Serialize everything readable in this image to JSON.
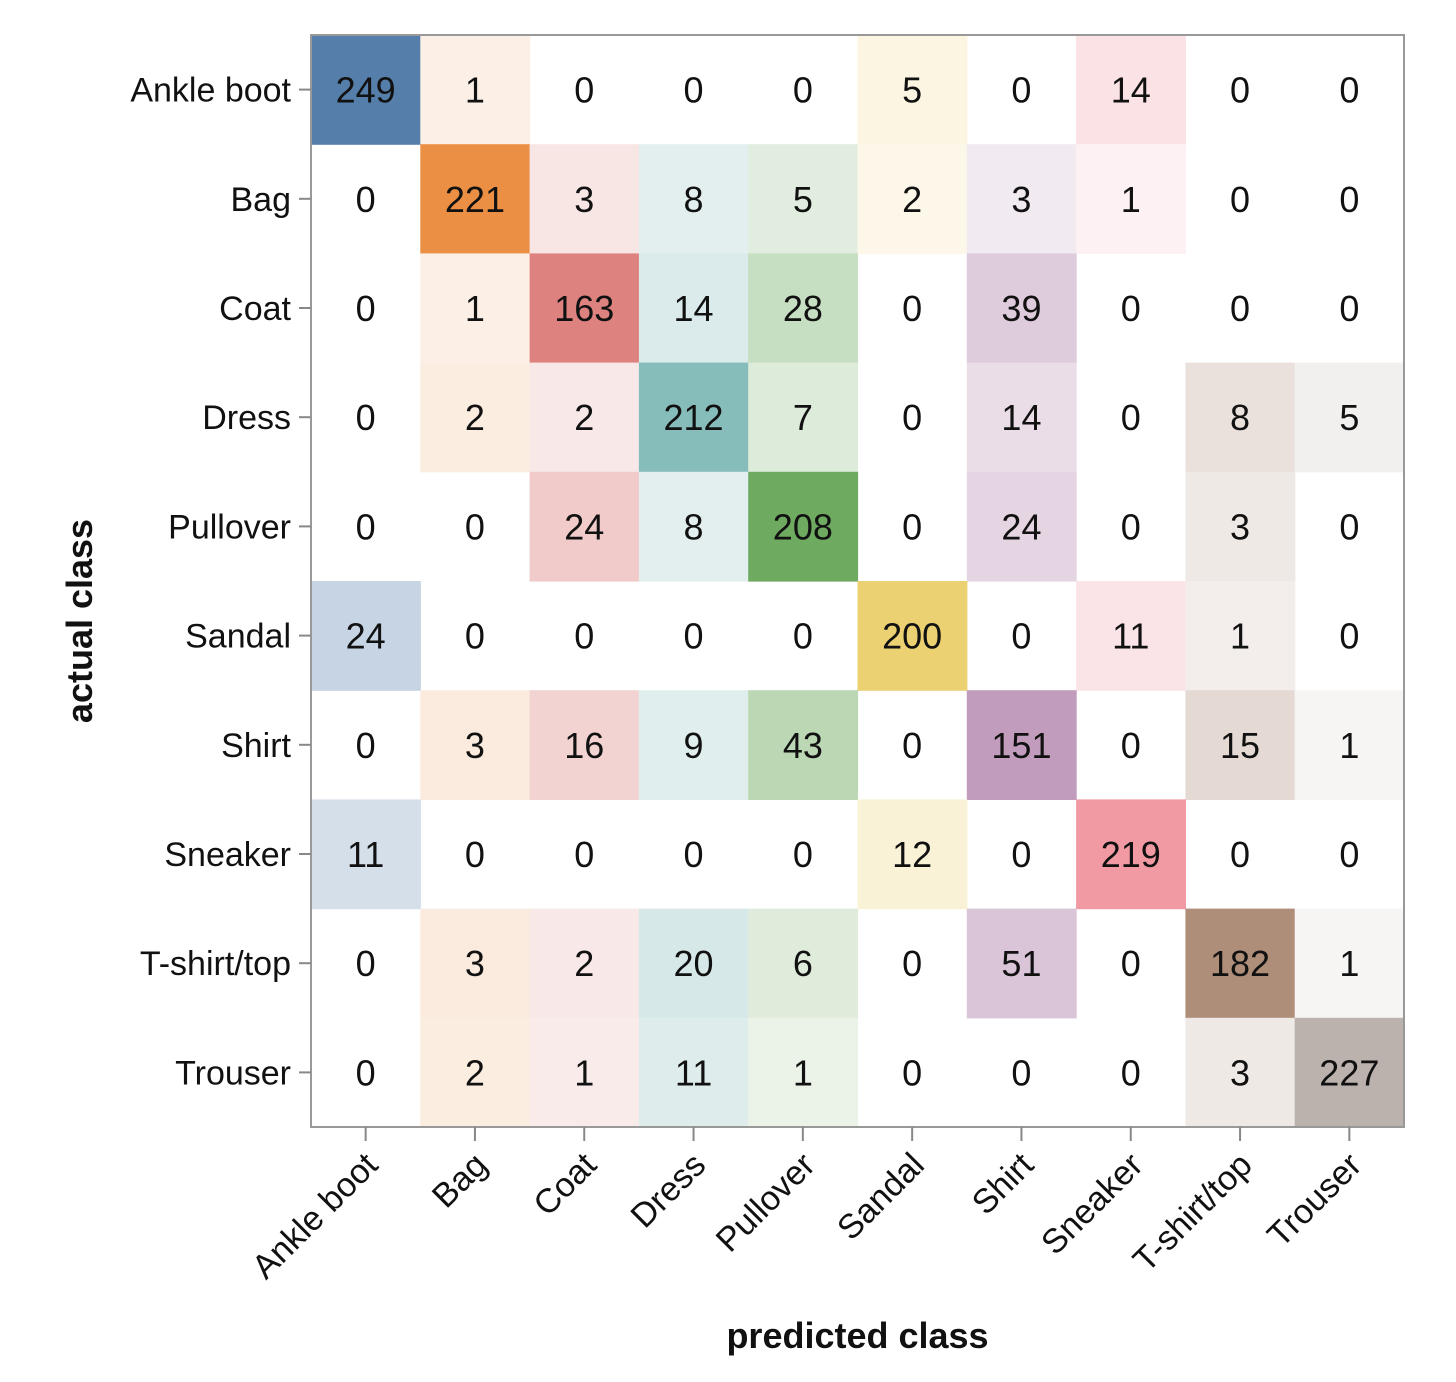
{
  "chart_data": {
    "type": "heatmap",
    "title": "",
    "xlabel": "predicted class",
    "ylabel": "actual class",
    "x_categories": [
      "Ankle boot",
      "Bag",
      "Coat",
      "Dress",
      "Pullover",
      "Sandal",
      "Shirt",
      "Sneaker",
      "T-shirt/top",
      "Trouser"
    ],
    "y_categories": [
      "Ankle boot",
      "Bag",
      "Coat",
      "Dress",
      "Pullover",
      "Sandal",
      "Shirt",
      "Sneaker",
      "T-shirt/top",
      "Trouser"
    ],
    "values": [
      [
        249,
        1,
        0,
        0,
        0,
        5,
        0,
        14,
        0,
        0
      ],
      [
        0,
        221,
        3,
        8,
        5,
        2,
        3,
        1,
        0,
        0
      ],
      [
        0,
        1,
        163,
        14,
        28,
        0,
        39,
        0,
        0,
        0
      ],
      [
        0,
        2,
        2,
        212,
        7,
        0,
        14,
        0,
        8,
        5
      ],
      [
        0,
        0,
        24,
        8,
        208,
        0,
        24,
        0,
        3,
        0
      ],
      [
        24,
        0,
        0,
        0,
        0,
        200,
        0,
        11,
        1,
        0
      ],
      [
        0,
        3,
        16,
        9,
        43,
        0,
        151,
        0,
        15,
        1
      ],
      [
        11,
        0,
        0,
        0,
        0,
        12,
        0,
        219,
        0,
        0
      ],
      [
        0,
        3,
        2,
        20,
        6,
        0,
        51,
        0,
        182,
        1
      ],
      [
        0,
        2,
        1,
        11,
        1,
        0,
        0,
        0,
        3,
        227
      ]
    ],
    "column_colors": [
      "#4e79a7",
      "#e8832f",
      "#d55e5b",
      "#76b4b1",
      "#5a9e4a",
      "#e8c95a",
      "#ad7ba5",
      "#ef8f99",
      "#9c745c",
      "#b5aba5"
    ],
    "color_scale_max": 249,
    "grid": false,
    "legend": "none"
  }
}
